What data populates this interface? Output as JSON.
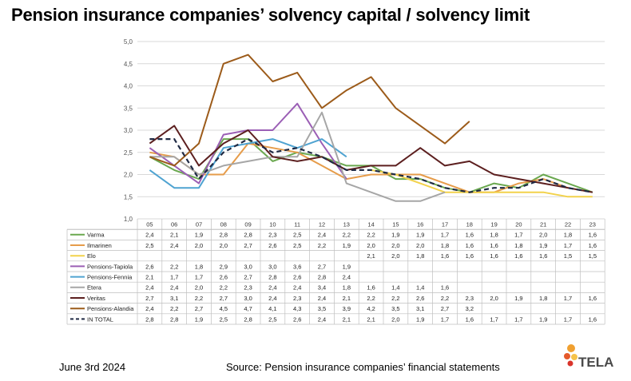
{
  "title": "Pension insurance companies’ solvency capital / solvency limit",
  "footer": {
    "date": "June 3rd 2024",
    "source": "Source: Pension insurance companies’ financial statements"
  },
  "logo": {
    "text": "TELA",
    "icon": "tela-dots-logo"
  },
  "chart_data": {
    "type": "line",
    "categories": [
      "05",
      "06",
      "07",
      "08",
      "09",
      "10",
      "11",
      "12",
      "13",
      "14",
      "15",
      "16",
      "17",
      "18",
      "19",
      "20",
      "21",
      "22",
      "23"
    ],
    "ylim": [
      1.0,
      5.0
    ],
    "yticks": [
      "1,0",
      "1,5",
      "2,0",
      "2,5",
      "3,0",
      "3,5",
      "4,0",
      "4,5",
      "5,0"
    ],
    "grid": true,
    "legend": "data-table-left",
    "series": [
      {
        "name": "Varma",
        "color": "#6aa84f",
        "dash": false,
        "values": [
          2.4,
          2.1,
          1.9,
          2.8,
          2.8,
          2.3,
          2.5,
          2.4,
          2.2,
          2.2,
          1.9,
          1.9,
          1.7,
          1.6,
          1.8,
          1.7,
          2.0,
          1.8,
          1.6
        ],
        "labels": [
          "2,4",
          "2,1",
          "1,9",
          "2,8",
          "2,8",
          "2,3",
          "2,5",
          "2,4",
          "2,2",
          "2,2",
          "1,9",
          "1,9",
          "1,7",
          "1,6",
          "1,8",
          "1,7",
          "2,0",
          "1,8",
          "1,6"
        ]
      },
      {
        "name": "Ilmarinen",
        "color": "#e69c4a",
        "dash": false,
        "values": [
          2.5,
          2.4,
          2.0,
          2.0,
          2.7,
          2.6,
          2.5,
          2.2,
          1.9,
          2.0,
          2.0,
          2.0,
          1.8,
          1.6,
          1.6,
          1.8,
          1.9,
          1.7,
          1.6
        ],
        "labels": [
          "2,5",
          "2,4",
          "2,0",
          "2,0",
          "2,7",
          "2,6",
          "2,5",
          "2,2",
          "1,9",
          "2,0",
          "2,0",
          "2,0",
          "1,8",
          "1,6",
          "1,6",
          "1,8",
          "1,9",
          "1,7",
          "1,6"
        ]
      },
      {
        "name": "Elo",
        "color": "#f2d24b",
        "dash": false,
        "values": [
          null,
          null,
          null,
          null,
          null,
          null,
          null,
          null,
          null,
          2.1,
          2.0,
          1.8,
          1.6,
          1.6,
          1.6,
          1.6,
          1.6,
          1.5,
          1.5
        ],
        "labels": [
          "",
          "",
          "",
          "",
          "",
          "",
          "",
          "",
          "",
          "2,1",
          "2,0",
          "1,8",
          "1,6",
          "1,6",
          "1,6",
          "1,6",
          "1,6",
          "1,5",
          "1,5"
        ]
      },
      {
        "name": "Pensions-Tapiola",
        "color": "#9b5fb5",
        "dash": false,
        "values": [
          2.6,
          2.2,
          1.8,
          2.9,
          3.0,
          3.0,
          3.6,
          2.7,
          1.9,
          null,
          null,
          null,
          null,
          null,
          null,
          null,
          null,
          null,
          null
        ],
        "labels": [
          "2,6",
          "2,2",
          "1,8",
          "2,9",
          "3,0",
          "3,0",
          "3,6",
          "2,7",
          "1,9",
          "",
          "",
          "",
          "",
          "",
          "",
          "",
          "",
          "",
          ""
        ]
      },
      {
        "name": "Pensions-Fennia",
        "color": "#4fa3d1",
        "dash": false,
        "values": [
          2.1,
          1.7,
          1.7,
          2.6,
          2.7,
          2.8,
          2.6,
          2.8,
          2.4,
          null,
          null,
          null,
          null,
          null,
          null,
          null,
          null,
          null,
          null
        ],
        "labels": [
          "2,1",
          "1,7",
          "1,7",
          "2,6",
          "2,7",
          "2,8",
          "2,6",
          "2,8",
          "2,4",
          "",
          "",
          "",
          "",
          "",
          "",
          "",
          "",
          "",
          ""
        ]
      },
      {
        "name": "Etera",
        "color": "#a6a6a6",
        "dash": false,
        "values": [
          2.4,
          2.4,
          2.0,
          2.2,
          2.3,
          2.4,
          2.4,
          3.4,
          1.8,
          1.6,
          1.4,
          1.4,
          1.6,
          null,
          null,
          null,
          null,
          null,
          null
        ],
        "labels": [
          "2,4",
          "2,4",
          "2,0",
          "2,2",
          "2,3",
          "2,4",
          "2,4",
          "3,4",
          "1,8",
          "1,6",
          "1,4",
          "1,4",
          "1,6",
          "",
          "",
          "",
          "",
          "",
          ""
        ]
      },
      {
        "name": "Veritas",
        "color": "#5c1f1f",
        "dash": false,
        "values": [
          2.7,
          3.1,
          2.2,
          2.7,
          3.0,
          2.4,
          2.3,
          2.4,
          2.1,
          2.2,
          2.2,
          2.6,
          2.2,
          2.3,
          2.0,
          1.9,
          1.8,
          1.7,
          1.6
        ],
        "labels": [
          "2,7",
          "3,1",
          "2,2",
          "2,7",
          "3,0",
          "2,4",
          "2,3",
          "2,4",
          "2,1",
          "2,2",
          "2,2",
          "2,6",
          "2,2",
          "2,3",
          "2,0",
          "1,9",
          "1,8",
          "1,7",
          "1,6"
        ]
      },
      {
        "name": "Pensions-Alandia",
        "color": "#9c5b1a",
        "dash": false,
        "values": [
          2.4,
          2.2,
          2.7,
          4.5,
          4.7,
          4.1,
          4.3,
          3.5,
          3.9,
          4.2,
          3.5,
          3.1,
          2.7,
          3.2,
          null,
          null,
          null,
          null,
          null
        ],
        "labels": [
          "2,4",
          "2,2",
          "2,7",
          "4,5",
          "4,7",
          "4,1",
          "4,3",
          "3,5",
          "3,9",
          "4,2",
          "3,5",
          "3,1",
          "2,7",
          "3,2",
          "",
          "",
          "",
          "",
          ""
        ]
      },
      {
        "name": "IN TOTAL",
        "color": "#1f2a44",
        "dash": true,
        "values": [
          2.8,
          2.8,
          1.9,
          2.5,
          2.8,
          2.5,
          2.6,
          2.4,
          2.1,
          2.1,
          2.0,
          1.9,
          1.7,
          1.6,
          1.7,
          1.7,
          1.9,
          1.7,
          1.6
        ],
        "labels": [
          "2,8",
          "2,8",
          "1,9",
          "2,5",
          "2,8",
          "2,5",
          "2,6",
          "2,4",
          "2,1",
          "2,1",
          "2,0",
          "1,9",
          "1,7",
          "1,6",
          "1,7",
          "1,7",
          "1,9",
          "1,7",
          "1,6"
        ]
      }
    ]
  }
}
